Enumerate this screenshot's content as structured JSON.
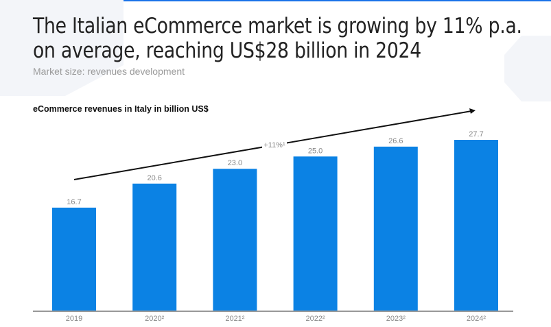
{
  "header": {
    "title_line1": "The Italian eCommerce market is growing by 11% p.a.",
    "title_line2": "on average, reaching US$28 billion in 2024",
    "subtitle": "Market size: revenues development"
  },
  "colors": {
    "bar": "#0b82e4",
    "accent": "#1a73e8",
    "trend": "#111111"
  },
  "chart_data": {
    "type": "bar",
    "title": "eCommerce revenues in Italy in billion US$",
    "categories": [
      "2019",
      "2020²",
      "2021²",
      "2022²",
      "2023²",
      "2024²"
    ],
    "values": [
      16.7,
      20.6,
      23.0,
      25.0,
      26.6,
      27.7
    ],
    "value_labels": [
      "16.7",
      "20.6",
      "23.0",
      "25.0",
      "26.6",
      "27.7"
    ],
    "annotation": "+11%¹",
    "ylim": [
      0,
      27.7
    ],
    "grid": false,
    "legend": "none"
  }
}
